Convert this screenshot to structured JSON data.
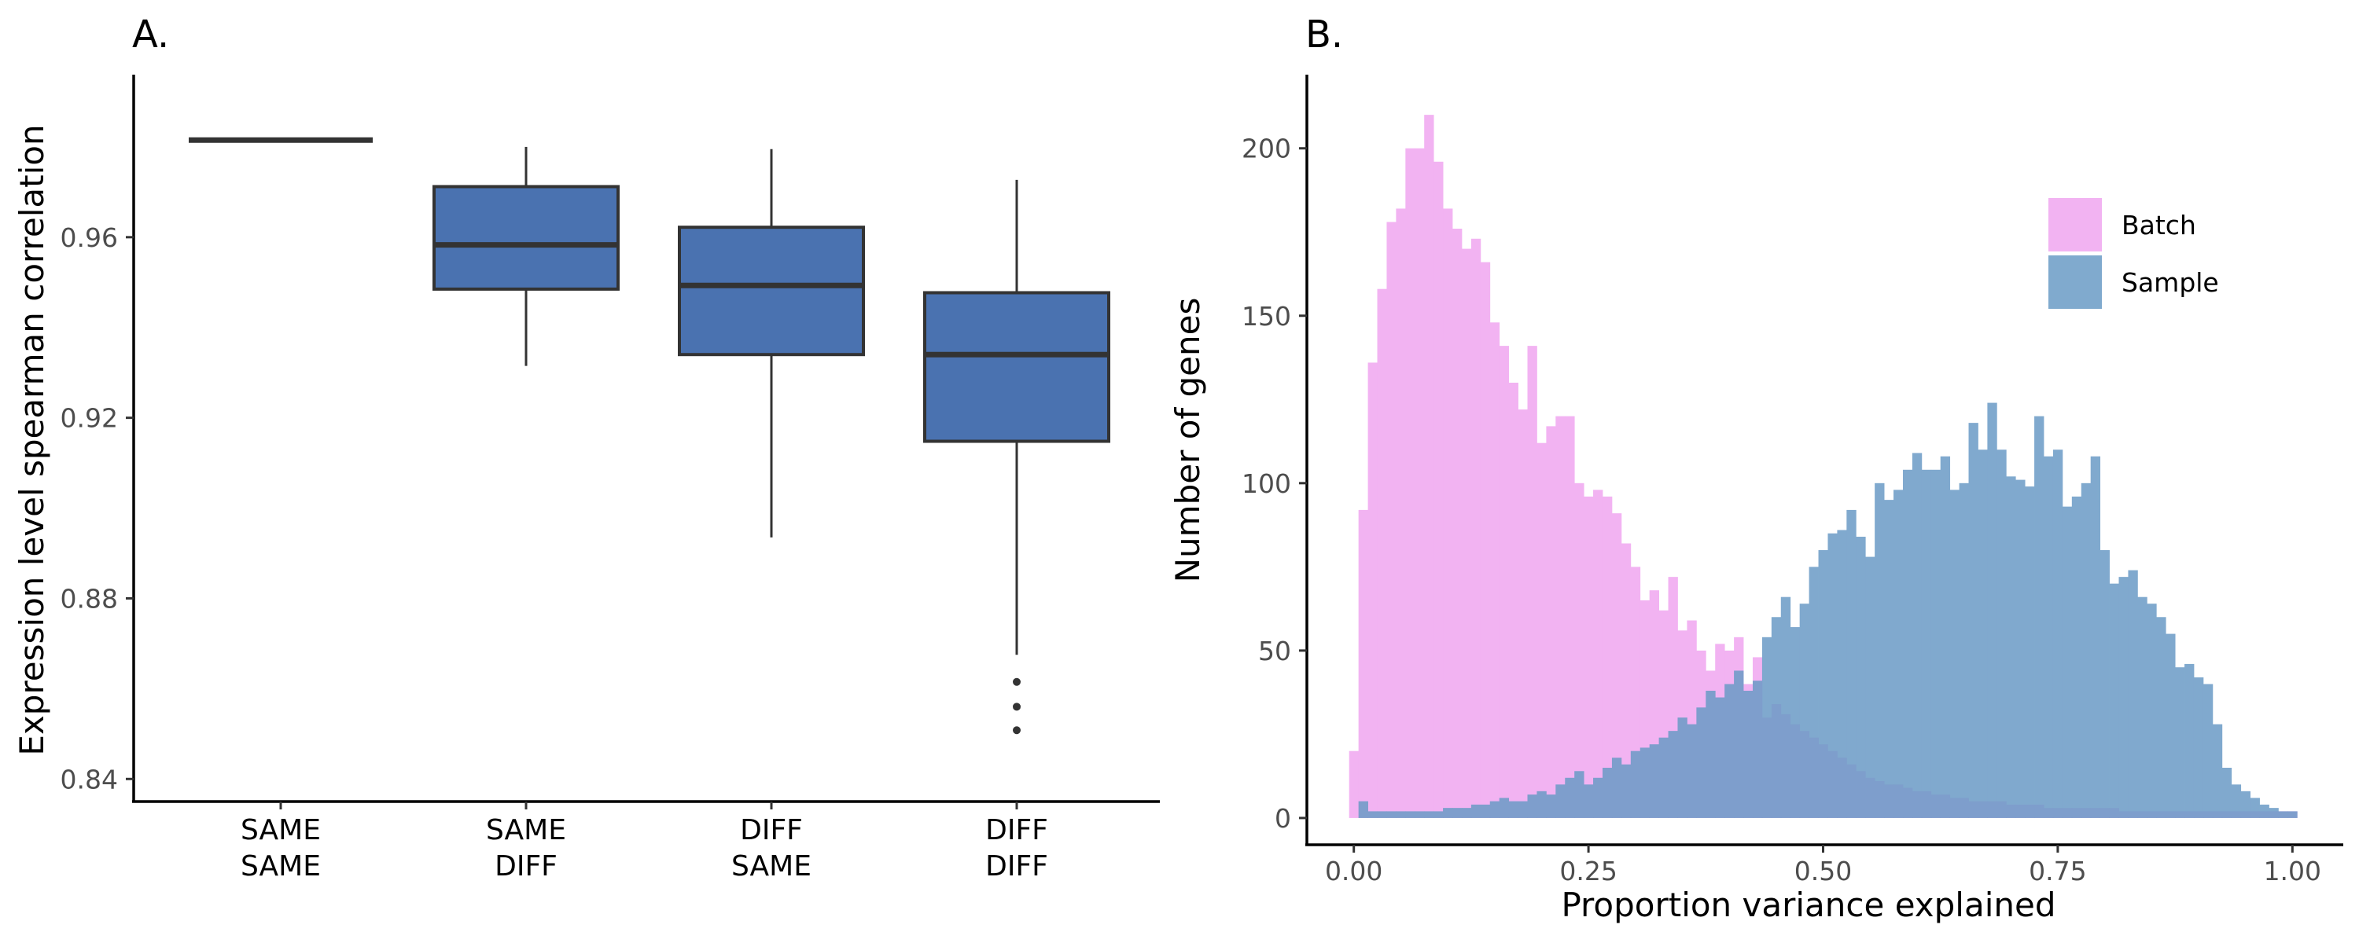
{
  "chart_data": [
    {
      "type": "box",
      "panel_label": "A.",
      "title": "",
      "ylabel": "Expression level spearman correlation",
      "xlabel": "",
      "ylim": [
        0.835,
        0.996
      ],
      "yticks": [
        0.84,
        0.88,
        0.92,
        0.96
      ],
      "ytick_labels": [
        "0.84",
        "0.88",
        "0.92",
        "0.96"
      ],
      "fill_color": "#4a72b0",
      "edge_color": "#333333",
      "categories": [
        {
          "label_line1": "SAME",
          "label_line2": "SAME",
          "q1": 0.9815,
          "median": 0.9815,
          "q3": 0.9815,
          "whisker_low": 0.9815,
          "whisker_high": 0.9815,
          "outliers": []
        },
        {
          "label_line1": "SAME",
          "label_line2": "DIFF",
          "q1": 0.9485,
          "median": 0.9583,
          "q3": 0.9712,
          "whisker_low": 0.9315,
          "whisker_high": 0.98,
          "outliers": []
        },
        {
          "label_line1": "DIFF",
          "label_line2": "SAME",
          "q1": 0.934,
          "median": 0.9493,
          "q3": 0.9622,
          "whisker_low": 0.8935,
          "whisker_high": 0.9795,
          "outliers": []
        },
        {
          "label_line1": "DIFF",
          "label_line2": "DIFF",
          "q1": 0.9148,
          "median": 0.934,
          "q3": 0.9477,
          "whisker_low": 0.8675,
          "whisker_high": 0.9727,
          "outliers": [
            0.8615,
            0.856,
            0.8508
          ]
        }
      ],
      "grid": false
    },
    {
      "type": "histogram",
      "panel_label": "B.",
      "title": "",
      "xlabel": "Proportion variance explained",
      "ylabel": "Number of genes",
      "xlim": [
        -0.05,
        1.05
      ],
      "ylim": [
        -8,
        222
      ],
      "xticks": [
        0.0,
        0.25,
        0.5,
        0.75,
        1.0
      ],
      "xtick_labels": [
        "0.00",
        "0.25",
        "0.50",
        "0.75",
        "1.00"
      ],
      "yticks": [
        0,
        50,
        100,
        150,
        200
      ],
      "ytick_labels": [
        "0",
        "50",
        "100",
        "150",
        "200"
      ],
      "bin_width": 0.01,
      "bin_start": -0.005,
      "legend_position": "top-right",
      "grid": false,
      "series": [
        {
          "name": "Batch",
          "color": "#f0a6f0",
          "values": [
            20,
            92,
            136,
            158,
            178,
            182,
            200,
            200,
            210,
            196,
            182,
            176,
            170,
            173,
            166,
            148,
            141,
            130,
            122,
            141,
            112,
            117,
            120,
            120,
            100,
            96,
            98,
            96,
            91,
            82,
            75,
            65,
            68,
            62,
            72,
            56,
            59,
            50,
            44,
            52,
            50,
            54,
            40,
            48,
            30,
            34,
            31,
            28,
            26,
            24,
            22,
            20,
            18,
            16,
            14,
            12,
            11,
            10,
            10,
            9,
            8,
            8,
            7,
            7,
            6,
            6,
            5,
            5,
            5,
            5,
            4,
            4,
            4,
            4,
            3,
            3,
            3,
            3,
            3,
            3,
            3,
            3,
            2,
            2,
            2,
            2,
            2,
            2,
            2,
            2,
            2,
            2,
            2,
            2,
            2,
            2,
            2,
            2,
            2,
            2,
            2
          ]
        },
        {
          "name": "Sample",
          "color": "#6a9bc6",
          "values": [
            0,
            5,
            2,
            2,
            2,
            2,
            2,
            2,
            2,
            2,
            3,
            3,
            3,
            4,
            4,
            5,
            6,
            5,
            5,
            7,
            8,
            7,
            10,
            12,
            14,
            10,
            12,
            15,
            18,
            16,
            20,
            21,
            22,
            24,
            26,
            30,
            28,
            33,
            38,
            36,
            40,
            44,
            38,
            41,
            54,
            60,
            66,
            57,
            64,
            75,
            80,
            85,
            86,
            92,
            84,
            78,
            100,
            95,
            98,
            104,
            109,
            104,
            104,
            108,
            98,
            100,
            118,
            110,
            124,
            110,
            102,
            101,
            99,
            120,
            108,
            110,
            93,
            96,
            100,
            108,
            80,
            70,
            72,
            74,
            66,
            64,
            60,
            55,
            45,
            46,
            42,
            40,
            28,
            15,
            10,
            8,
            6,
            4,
            3,
            2,
            2
          ]
        }
      ]
    }
  ]
}
